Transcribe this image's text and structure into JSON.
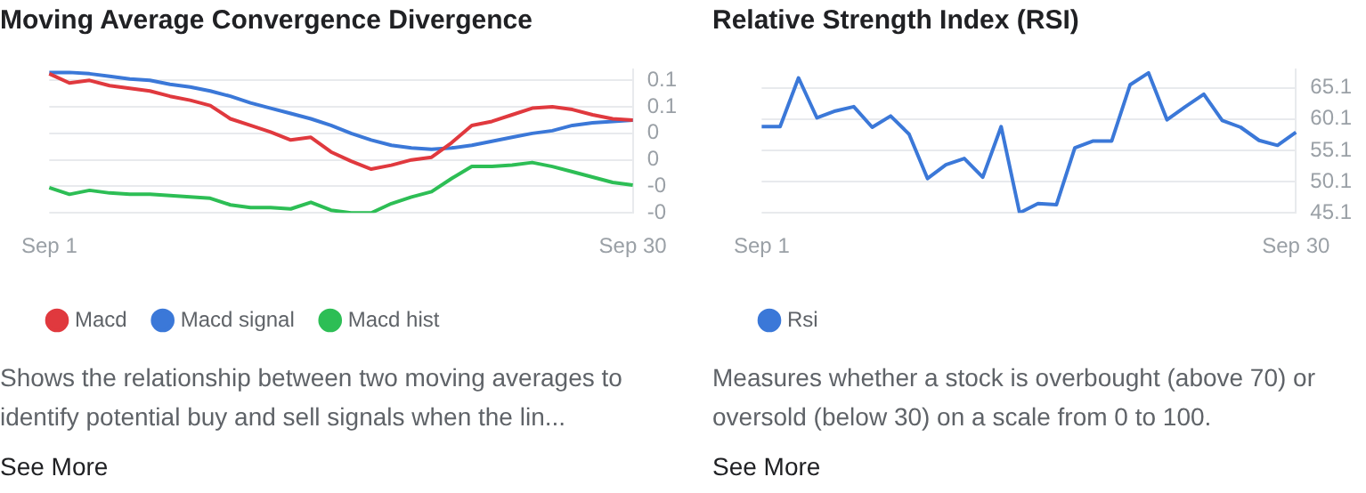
{
  "chart_data": [
    {
      "type": "line",
      "title": "Moving Average Convergence Divergence",
      "categories": [
        "Sep 1",
        null,
        null,
        null,
        null,
        null,
        null,
        null,
        null,
        null,
        null,
        null,
        null,
        null,
        null,
        null,
        null,
        null,
        null,
        null,
        null,
        null,
        null,
        null,
        null,
        null,
        null,
        null,
        null,
        "Sep 30"
      ],
      "series": [
        {
          "name": "Macd",
          "color": "#e0393e",
          "values": [
            0.075,
            0.068,
            0.07,
            0.066,
            0.064,
            0.062,
            0.058,
            0.055,
            0.051,
            0.041,
            0.036,
            0.031,
            0.025,
            0.027,
            0.016,
            0.009,
            0.003,
            0.006,
            0.01,
            0.012,
            0.023,
            0.036,
            0.039,
            0.044,
            0.049,
            0.05,
            0.048,
            0.044,
            0.041,
            0.04
          ]
        },
        {
          "name": "Macd signal",
          "color": "#3b78d8",
          "values": [
            0.076,
            0.076,
            0.075,
            0.073,
            0.071,
            0.07,
            0.067,
            0.065,
            0.062,
            0.058,
            0.053,
            0.049,
            0.045,
            0.041,
            0.036,
            0.03,
            0.025,
            0.021,
            0.019,
            0.018,
            0.019,
            0.021,
            0.024,
            0.027,
            0.03,
            0.032,
            0.036,
            0.038,
            0.039,
            0.04
          ]
        },
        {
          "name": "Macd hist",
          "color": "#2dbe55",
          "values": [
            -0.011,
            -0.016,
            -0.013,
            -0.015,
            -0.016,
            -0.016,
            -0.017,
            -0.018,
            -0.019,
            -0.024,
            -0.026,
            -0.026,
            -0.027,
            -0.022,
            -0.028,
            -0.03,
            -0.03,
            -0.023,
            -0.018,
            -0.014,
            -0.004,
            0.005,
            0.005,
            0.006,
            0.008,
            0.005,
            0.001,
            -0.003,
            -0.007,
            -0.009
          ]
        }
      ],
      "ylim": [
        -0.03,
        0.078
      ],
      "yticks": [
        {
          "value": 0.07,
          "label": "0.1"
        },
        {
          "value": 0.05,
          "label": "0.1"
        },
        {
          "value": 0.03,
          "label": "0"
        },
        {
          "value": 0.01,
          "label": "0"
        },
        {
          "value": -0.01,
          "label": "-0"
        },
        {
          "value": -0.03,
          "label": "-0"
        }
      ],
      "grid": "y",
      "legend": "bottom left",
      "marker": "none",
      "line_style": "solid",
      "annotations": [
        "Shows the relationship between two moving averages to identify potential buy and sell signals when the lin...",
        "See More"
      ]
    },
    {
      "type": "line",
      "title": "Relative Strength Index (RSI)",
      "categories": [
        "Sep 1",
        null,
        null,
        null,
        null,
        null,
        null,
        null,
        null,
        null,
        null,
        null,
        null,
        null,
        null,
        null,
        null,
        null,
        null,
        null,
        null,
        null,
        null,
        null,
        null,
        null,
        null,
        null,
        null,
        "Sep 30"
      ],
      "series": [
        {
          "name": "Rsi",
          "color": "#3b78d8",
          "values": [
            58.9,
            58.9,
            66.7,
            60.3,
            61.4,
            62.1,
            58.8,
            60.6,
            57.7,
            50.6,
            52.8,
            53.8,
            50.8,
            58.9,
            45.1,
            46.6,
            46.4,
            55.5,
            56.6,
            56.6,
            65.6,
            67.5,
            60.0,
            62.1,
            64.1,
            59.9,
            58.8,
            56.7,
            55.9,
            58.0
          ]
        }
      ],
      "ylim": [
        45.1,
        68
      ],
      "yticks": [
        45.1,
        50.1,
        55.1,
        60.1,
        65.1
      ],
      "grid": "y",
      "legend": "bottom left",
      "marker": "none",
      "line_style": "solid",
      "annotations": [
        "Measures whether a stock is overbought (above 70) or oversold (below 30) on a scale from 0 to 100.",
        "See More"
      ]
    }
  ]
}
